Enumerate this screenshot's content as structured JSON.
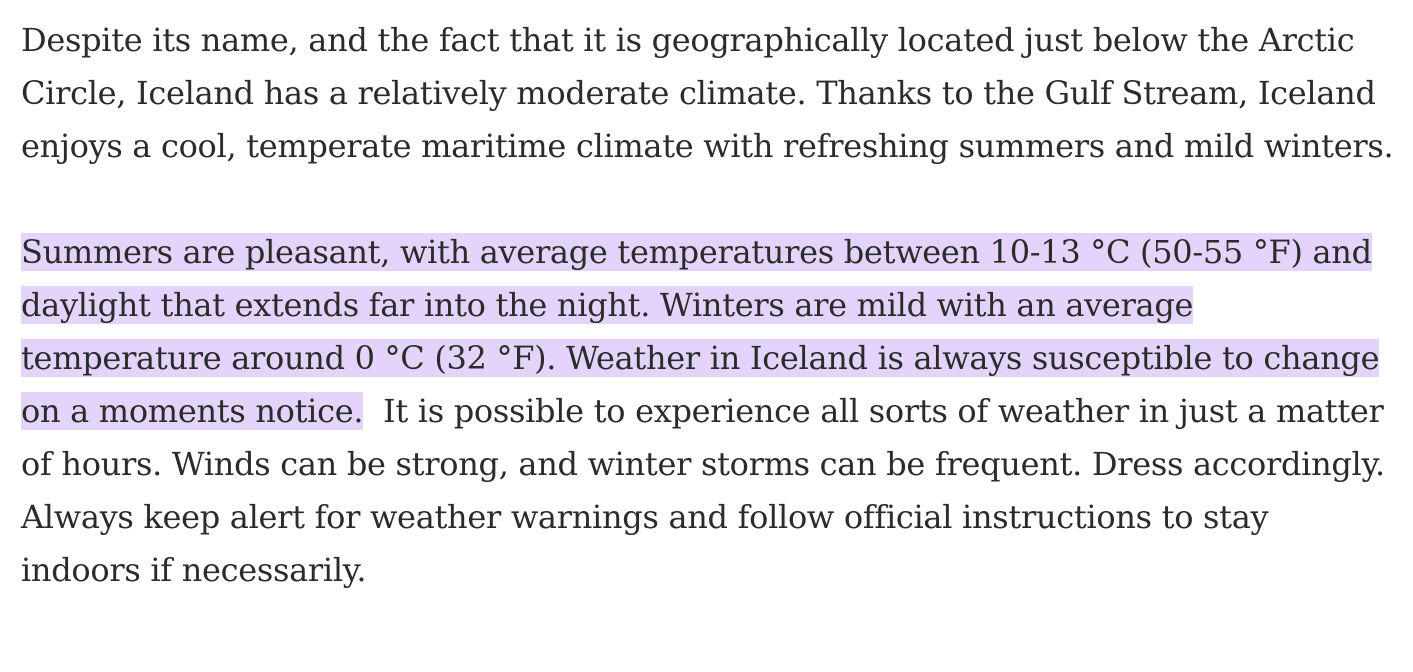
{
  "article": {
    "paragraphs": [
      {
        "text": "Despite its name, and the fact that it is geographically located just below the Arctic Circle, Iceland has a relatively moderate climate. Thanks to the Gulf Stream, Iceland enjoys a cool, temperate maritime climate with refreshing summers and mild winters."
      },
      {
        "highlighted_text": "Summers are pleasant, with average temperatures between 10-13 °C (50-55 °F) and daylight that extends far into the night. Winters are mild with an average temperature around 0 °C (32 °F). Weather in Iceland is always susceptible to change on a moments notice.",
        "rest_text": "  It is possible to experience all sorts of weather in just a matter of hours. Winds can be strong, and winter storms can be frequent. Dress accordingly. Always keep alert for weather warnings and follow official instructions to stay indoors if necessarily."
      }
    ],
    "highlight_color": "#e4d4fb",
    "text_color": "#2b2b2b"
  }
}
